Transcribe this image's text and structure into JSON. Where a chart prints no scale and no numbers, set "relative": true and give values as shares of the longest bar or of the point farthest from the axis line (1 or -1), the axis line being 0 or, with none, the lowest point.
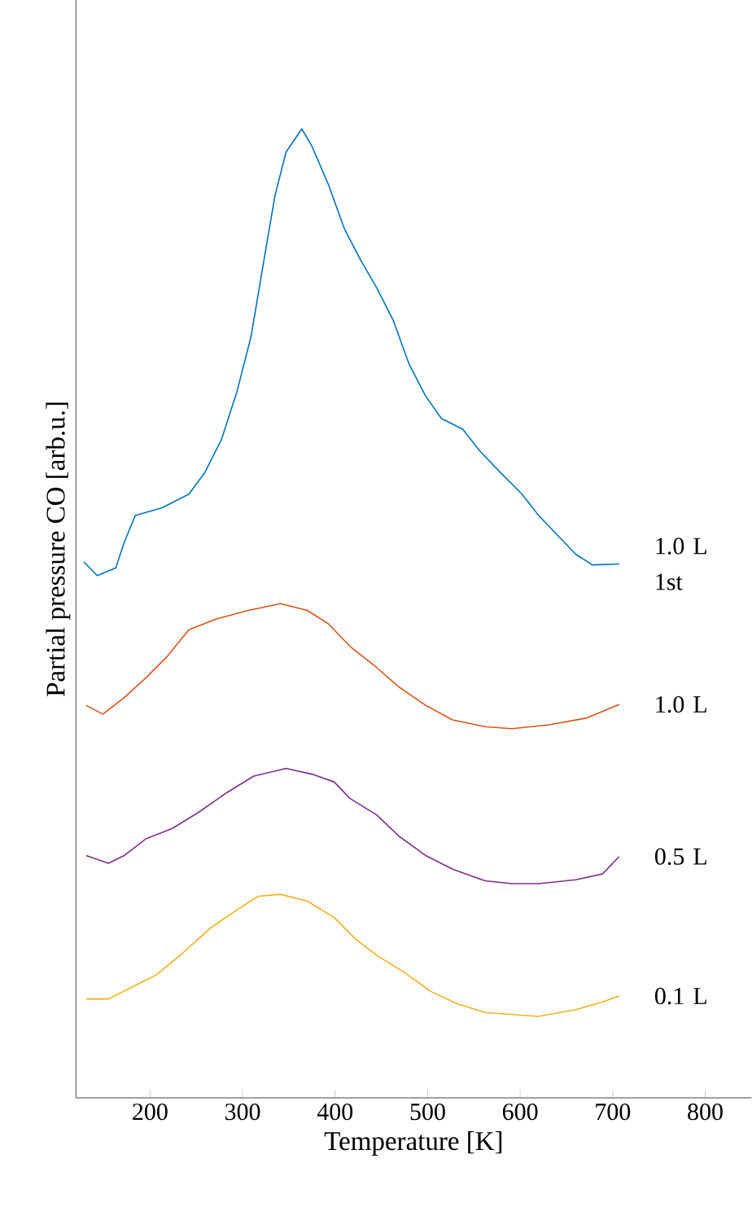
{
  "chart_data": {
    "type": "line",
    "relative": true,
    "xlabel": "Temperature [K]",
    "ylabel": "Partial pressure CO [arb.u.]",
    "xlim": [
      120,
      850
    ],
    "xticks": [
      200,
      300,
      400,
      500,
      600,
      700,
      800
    ],
    "series": [
      {
        "name": "1.0 L 1st",
        "color": "#0072bd",
        "x": [
          128.5,
          143,
          163,
          172,
          184,
          213,
          242,
          259,
          277,
          294,
          309,
          323,
          335,
          347,
          364,
          375,
          393,
          410,
          428,
          445,
          463,
          480,
          498,
          515,
          538,
          556,
          579,
          602,
          620,
          643,
          660,
          678,
          707
        ],
        "values": [
          0.553,
          0.539,
          0.547,
          0.573,
          0.601,
          0.609,
          0.623,
          0.645,
          0.679,
          0.729,
          0.785,
          0.864,
          0.931,
          0.976,
          1.0,
          0.982,
          0.942,
          0.897,
          0.864,
          0.836,
          0.802,
          0.757,
          0.724,
          0.701,
          0.69,
          0.668,
          0.645,
          0.623,
          0.601,
          0.578,
          0.561,
          0.55,
          0.551
        ]
      },
      {
        "name": "1.0 L",
        "color": "#d95319",
        "x": [
          131,
          149,
          172,
          195,
          218,
          242,
          271,
          306,
          341,
          370,
          393,
          416,
          445,
          469,
          498,
          527,
          562,
          591,
          631,
          672,
          707
        ],
        "values": [
          0.405,
          0.396,
          0.413,
          0.433,
          0.455,
          0.483,
          0.494,
          0.503,
          0.51,
          0.503,
          0.489,
          0.466,
          0.444,
          0.424,
          0.405,
          0.39,
          0.383,
          0.381,
          0.385,
          0.392,
          0.406
        ]
      },
      {
        "name": "0.5 L",
        "color": "#7e2f8e",
        "x": [
          131,
          155,
          172,
          195,
          224,
          253,
          283,
          312,
          347,
          375,
          399,
          416,
          445,
          469,
          498,
          527,
          562,
          591,
          620,
          660,
          689,
          707
        ],
        "values": [
          0.25,
          0.242,
          0.25,
          0.267,
          0.278,
          0.295,
          0.315,
          0.332,
          0.34,
          0.334,
          0.326,
          0.309,
          0.292,
          0.27,
          0.25,
          0.236,
          0.224,
          0.221,
          0.221,
          0.225,
          0.231,
          0.249
        ]
      },
      {
        "name": "0.1 L",
        "color": "#edb120",
        "x": [
          131,
          155,
          178,
          207,
          236,
          265,
          294,
          317,
          341,
          370,
          399,
          422,
          445,
          474,
          503,
          532,
          562,
          620,
          660,
          689,
          707
        ],
        "values": [
          0.102,
          0.102,
          0.113,
          0.127,
          0.15,
          0.175,
          0.194,
          0.208,
          0.21,
          0.203,
          0.186,
          0.164,
          0.147,
          0.13,
          0.11,
          0.097,
          0.088,
          0.084,
          0.091,
          0.099,
          0.105
        ]
      }
    ]
  }
}
